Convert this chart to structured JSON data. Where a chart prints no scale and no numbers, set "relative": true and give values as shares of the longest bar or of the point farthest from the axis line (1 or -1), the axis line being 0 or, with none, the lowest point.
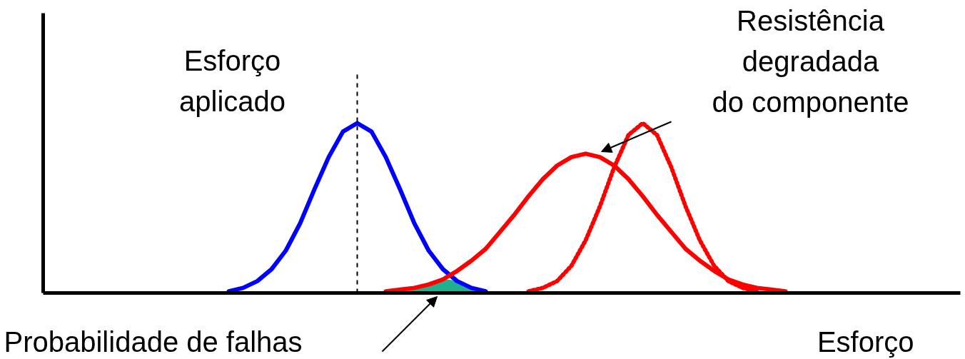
{
  "chart_data": {
    "type": "line",
    "relative": true,
    "xlabel": "Esforço",
    "categories": [
      null,
      null,
      null,
      null,
      null,
      null,
      null,
      null,
      null,
      null,
      null,
      null,
      null,
      null,
      null,
      null,
      null,
      null,
      null,
      null,
      null,
      null,
      null,
      null,
      null,
      null,
      null,
      null,
      null,
      null,
      null,
      null,
      null,
      null,
      null,
      null,
      null,
      null,
      null,
      null,
      null,
      null,
      null,
      null,
      null,
      null,
      null,
      null,
      null,
      null,
      null,
      null,
      null,
      null,
      null,
      null,
      null,
      null,
      null,
      null,
      null,
      null,
      null,
      null,
      null
    ],
    "series": [
      {
        "type": "area",
        "color": "#20b090",
        "values": [
          null,
          null,
          null,
          null,
          null,
          null,
          null,
          null,
          null,
          null,
          null,
          null,
          null,
          null,
          null,
          null,
          null,
          null,
          null,
          null,
          null,
          null,
          null,
          null,
          0.01,
          0.02,
          0.03,
          0.05,
          0.08,
          0.07,
          0.03,
          0.01,
          null,
          null,
          null,
          null,
          null,
          null,
          null,
          null,
          null,
          null,
          null,
          null,
          null,
          null,
          null,
          null,
          null,
          null,
          null,
          null,
          null,
          null,
          null,
          null,
          null,
          null,
          null,
          null,
          null,
          null,
          null,
          null,
          null
        ]
      },
      {
        "color": "#0000ff",
        "line_style": "solid",
        "values": [
          null,
          null,
          null,
          null,
          null,
          null,
          null,
          null,
          null,
          null,
          null,
          null,
          null,
          0.01,
          0.03,
          0.07,
          0.14,
          0.25,
          0.41,
          0.61,
          0.8,
          0.95,
          1,
          0.95,
          0.8,
          0.61,
          0.41,
          0.25,
          0.14,
          0.07,
          0.03,
          0.01,
          null,
          null,
          null,
          null,
          null,
          null,
          null,
          null,
          null,
          null,
          null,
          null,
          null,
          null,
          null,
          null,
          null,
          null,
          null,
          null,
          null,
          null,
          null,
          null,
          null,
          null,
          null,
          null,
          null,
          null,
          null,
          null,
          null
        ]
      },
      {
        "color": "#ff0000",
        "line_style": "solid",
        "values": [
          null,
          null,
          null,
          null,
          null,
          null,
          null,
          null,
          null,
          null,
          null,
          null,
          null,
          null,
          null,
          null,
          null,
          null,
          null,
          null,
          null,
          null,
          null,
          null,
          0.01,
          0.02,
          0.03,
          0.05,
          0.08,
          0.13,
          0.19,
          0.26,
          0.36,
          0.46,
          0.57,
          0.67,
          0.75,
          0.8,
          0.82,
          0.8,
          0.75,
          0.67,
          0.57,
          0.46,
          0.36,
          0.26,
          0.19,
          0.13,
          0.08,
          0.05,
          0.03,
          0.02,
          0.01,
          null,
          null,
          null,
          null,
          null,
          null,
          null,
          null,
          null,
          null,
          null,
          null
        ]
      },
      {
        "color": "#ff0000",
        "line_style": "dotted",
        "values": [
          null,
          null,
          null,
          null,
          null,
          null,
          null,
          null,
          null,
          null,
          null,
          null,
          null,
          null,
          null,
          null,
          null,
          null,
          null,
          null,
          null,
          null,
          null,
          null,
          null,
          null,
          null,
          null,
          null,
          null,
          null,
          null,
          null,
          null,
          0.01,
          0.03,
          0.07,
          0.16,
          0.31,
          0.51,
          0.74,
          0.93,
          1,
          0.93,
          0.74,
          0.51,
          0.31,
          0.16,
          0.07,
          0.03,
          0.01,
          null,
          null,
          null,
          null,
          null,
          null,
          null,
          null,
          null,
          null,
          null,
          null,
          null,
          null
        ]
      }
    ],
    "annotations": [
      "Esforço\naplicado",
      "Resistência\ndegradada\ndo componente",
      "Probabilidade de falhas"
    ]
  }
}
